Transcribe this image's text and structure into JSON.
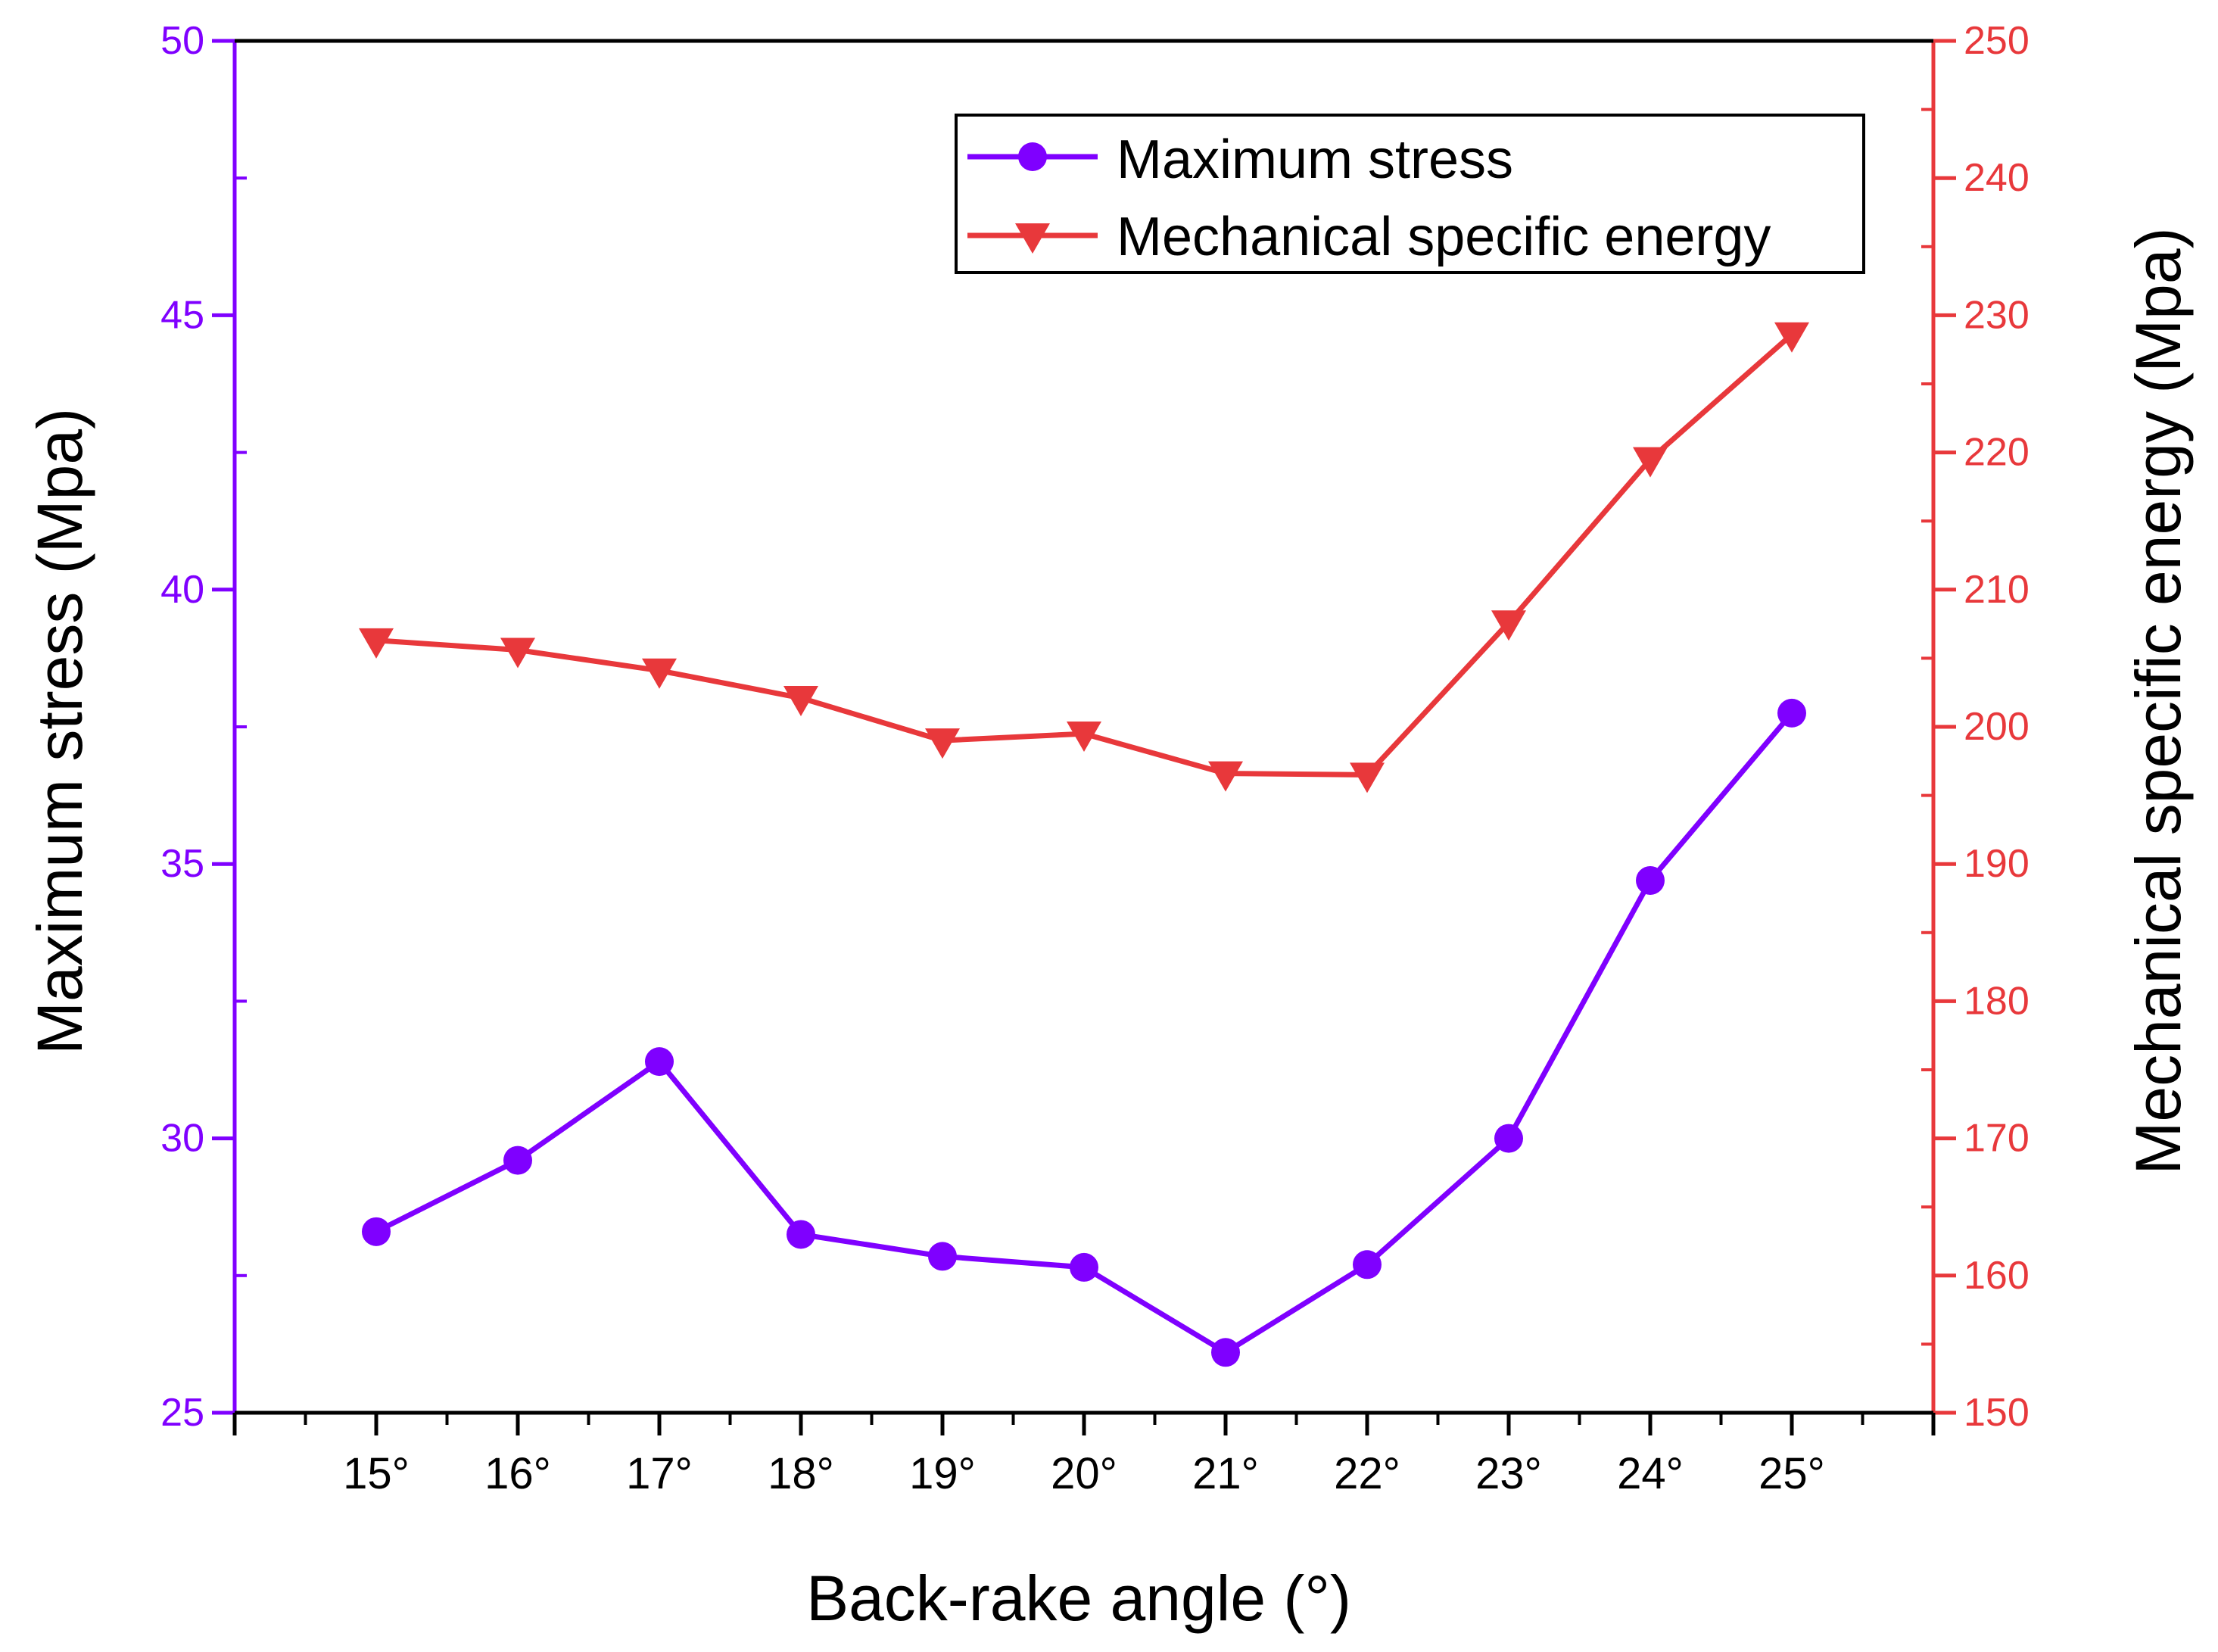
{
  "chart_data": {
    "type": "line",
    "title": "",
    "xlabel": "Back-rake angle (°)",
    "ylabel_left": "Maximum stress (Mpa)",
    "ylabel_right": "Mechanical specific energy (Mpa)",
    "categories": [
      "15°",
      "16°",
      "17°",
      "18°",
      "19°",
      "20°",
      "21°",
      "22°",
      "23°",
      "24°",
      "25°"
    ],
    "x": [
      15,
      16,
      17,
      18,
      19,
      20,
      21,
      22,
      23,
      24,
      25
    ],
    "xlim": [
      14,
      26
    ],
    "ylim_left": [
      25,
      50
    ],
    "ylim_right": [
      150,
      250
    ],
    "yticks_left": [
      "25",
      "30",
      "35",
      "40",
      "45",
      "50"
    ],
    "yticks_right": [
      "150",
      "160",
      "170",
      "180",
      "190",
      "200",
      "210",
      "220",
      "230",
      "240",
      "250"
    ],
    "grid": false,
    "legend_position": "top-right",
    "series": [
      {
        "name": "Maximum stress",
        "axis": "left",
        "marker": "circle",
        "color": "#7F00FF",
        "values": [
          28.3,
          29.6,
          31.4,
          28.25,
          27.85,
          27.65,
          26.1,
          27.7,
          30.0,
          34.7,
          37.75
        ]
      },
      {
        "name": "Mechanical specific energy",
        "axis": "right",
        "marker": "triangle-down",
        "color": "#E8383B",
        "values": [
          206.3,
          205.6,
          204.1,
          202.1,
          199.0,
          199.5,
          196.6,
          196.5,
          207.6,
          219.5,
          228.6
        ]
      }
    ],
    "colors": {
      "left_axis": "#7F00FF",
      "right_axis": "#E8383B",
      "frame": "#000000"
    }
  }
}
